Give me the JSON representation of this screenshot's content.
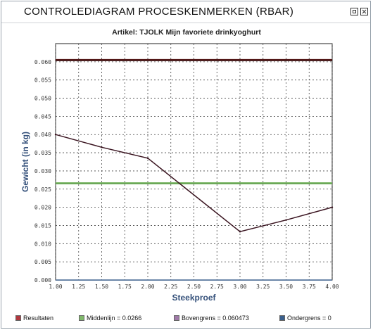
{
  "window": {
    "title": "CONTROLEDIAGRAM PROCESKENMERKEN  (RBAR)"
  },
  "colors": {
    "resultaten": "#b0383f",
    "middenlijn": "#7fb86a",
    "bovengrens": "#a07aa8",
    "ondergrens": "#3a5f8c",
    "result_line": "#3a1420",
    "upper_line": "#5a1a1a"
  },
  "chart_data": {
    "type": "line",
    "title": "Artikel: TJOLK Mijn favoriete drinkyoghurt",
    "xlabel": "Steekproef",
    "ylabel": "Gewicht (in kg)",
    "xlim": [
      1.0,
      4.0
    ],
    "ylim": [
      0.0,
      0.065
    ],
    "x_ticks": [
      "1.00",
      "1.25",
      "1.50",
      "1.75",
      "2.00",
      "2.25",
      "2.50",
      "2.75",
      "3.00",
      "3.25",
      "3.50",
      "3.75",
      "4.00"
    ],
    "y_ticks": [
      "0.000",
      "0.005",
      "0.010",
      "0.015",
      "0.020",
      "0.025",
      "0.030",
      "0.035",
      "0.040",
      "0.045",
      "0.050",
      "0.055",
      "0.060"
    ],
    "grid": true,
    "series": [
      {
        "name": "Resultaten",
        "x": [
          1.0,
          1.5,
          2.0,
          3.0,
          3.5,
          4.0
        ],
        "y": [
          0.04,
          0.0365,
          0.0335,
          0.0133,
          0.0165,
          0.02
        ]
      },
      {
        "name": "Middenlijn = 0.0266",
        "x": [
          1.0,
          4.0
        ],
        "y": [
          0.0266,
          0.0266
        ]
      },
      {
        "name": "Bovengrens = 0.060473",
        "x": [
          1.0,
          4.0
        ],
        "y": [
          0.060473,
          0.060473
        ]
      },
      {
        "name": "Ondergrens = 0",
        "x": [
          1.0,
          4.0
        ],
        "y": [
          0.0,
          0.0
        ]
      }
    ]
  },
  "legend": [
    {
      "label": "Resultaten",
      "color": "#b0383f"
    },
    {
      "label": "Middenlijn = 0.0266",
      "color": "#7fb86a"
    },
    {
      "label": "Bovengrens = 0.060473",
      "color": "#a07aa8"
    },
    {
      "label": "Ondergrens = 0",
      "color": "#3a5f8c"
    }
  ]
}
